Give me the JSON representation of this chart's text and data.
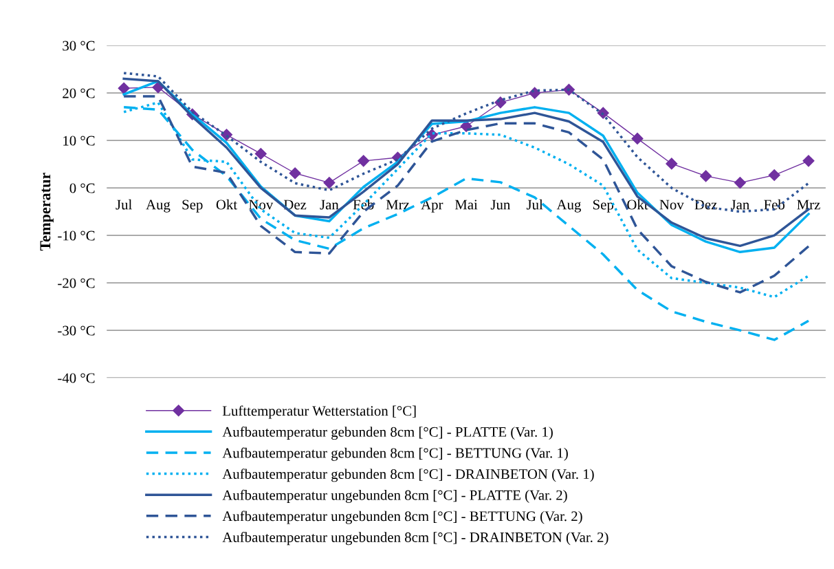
{
  "chart_data": {
    "type": "line",
    "ylabel": "Temperatur",
    "categories": [
      "Jul",
      "Aug",
      "Sep",
      "Okt",
      "Nov",
      "Dez",
      "Jan",
      "Feb",
      "Mrz",
      "Apr",
      "Mai",
      "Jun",
      "Jul",
      "Aug",
      "Sep",
      "Okt",
      "Nov",
      "Dez",
      "Jan",
      "Feb",
      "Mrz"
    ],
    "ylim": [
      -40,
      30
    ],
    "yticks": [
      {
        "value": -40,
        "label": "-40 °C"
      },
      {
        "value": -30,
        "label": "-30 °C"
      },
      {
        "value": -20,
        "label": "-20 °C"
      },
      {
        "value": -10,
        "label": "-10 °C"
      },
      {
        "value": 0,
        "label": "0 °C"
      },
      {
        "value": 10,
        "label": "10 °C"
      },
      {
        "value": 20,
        "label": "20 °C"
      },
      {
        "value": 30,
        "label": "30 °C"
      }
    ],
    "grid": "y",
    "legend": "bottom",
    "series": [
      {
        "name": "Lufttemperatur Wetterstation [°C]",
        "color": "#7030a0",
        "marker": "diamond",
        "line_style": "solid",
        "values": [
          21,
          21.2,
          15.5,
          11.2,
          7.2,
          3.1,
          1.1,
          5.7,
          6.4,
          11.2,
          13,
          18,
          20,
          20.7,
          15.8,
          10.4,
          5.1,
          2.5,
          1.1,
          2.7,
          5.7
        ]
      },
      {
        "name": "Aufbautemperatur gebunden 8cm [°C] - PLATTE (Var. 1)",
        "color": "#00b0f0",
        "marker": "none",
        "line_style": "solid",
        "values": [
          19.7,
          22.5,
          15.5,
          9.5,
          0.3,
          -5.8,
          -7,
          0.2,
          5.5,
          13.5,
          14,
          15.8,
          17,
          15.8,
          11,
          -1,
          -7.8,
          -11.3,
          -13.5,
          -12.6,
          -5.5
        ]
      },
      {
        "name": "Aufbautemperatur gebunden 8cm [°C] - BETTUNG (Var. 1)",
        "color": "#00b0f0",
        "marker": "none",
        "line_style": "dashed",
        "values": [
          17,
          16.5,
          8,
          2.5,
          -6.5,
          -11,
          -12.8,
          -8.5,
          -5.5,
          -2,
          2,
          1.2,
          -2,
          -8,
          -14,
          -21.5,
          -26,
          -28.2,
          -30,
          -32,
          -28
        ]
      },
      {
        "name": "Aufbautemperatur gebunden 8cm [°C] - DRAINBETON (Var. 1)",
        "color": "#00b0f0",
        "marker": "none",
        "line_style": "dotted",
        "values": [
          16,
          18,
          6,
          5.5,
          -4.5,
          -9.5,
          -10.5,
          -3.5,
          4,
          11.5,
          11.5,
          11.2,
          8.5,
          5,
          0.5,
          -13,
          -19,
          -20,
          -21,
          -23,
          -18.5
        ]
      },
      {
        "name": "Aufbautemperatur ungebunden 8cm [°C] - PLATTE (Var. 2)",
        "color": "#2f5597",
        "marker": "none",
        "line_style": "solid",
        "values": [
          23,
          22.5,
          15,
          8.5,
          0,
          -5.8,
          -6.2,
          -0.8,
          5,
          14.2,
          14.2,
          14.5,
          15.8,
          14,
          9.7,
          -1.8,
          -7.3,
          -10.6,
          -12.2,
          -10,
          -4.5
        ]
      },
      {
        "name": "Aufbautemperatur ungebunden 8cm [°C] - BETTUNG (Var. 2)",
        "color": "#2f5597",
        "marker": "none",
        "line_style": "dashed",
        "values": [
          19.3,
          19.3,
          4.5,
          3.2,
          -8,
          -13.5,
          -13.8,
          -5,
          0.5,
          9.8,
          12.2,
          13.6,
          13.6,
          11.7,
          6,
          -8.7,
          -16.5,
          -19.8,
          -22,
          -18.5,
          -12.3
        ]
      },
      {
        "name": "Aufbautemperatur ungebunden 8cm [°C] - DRAINBETON (Var. 2)",
        "color": "#2f5597",
        "marker": "none",
        "line_style": "dotted",
        "values": [
          24.2,
          23.5,
          16,
          11,
          5.5,
          1,
          -0.5,
          3,
          6,
          12.5,
          15.7,
          18.5,
          20.5,
          20.7,
          15.5,
          6.5,
          0,
          -4,
          -5,
          -4.5,
          1
        ]
      }
    ]
  }
}
